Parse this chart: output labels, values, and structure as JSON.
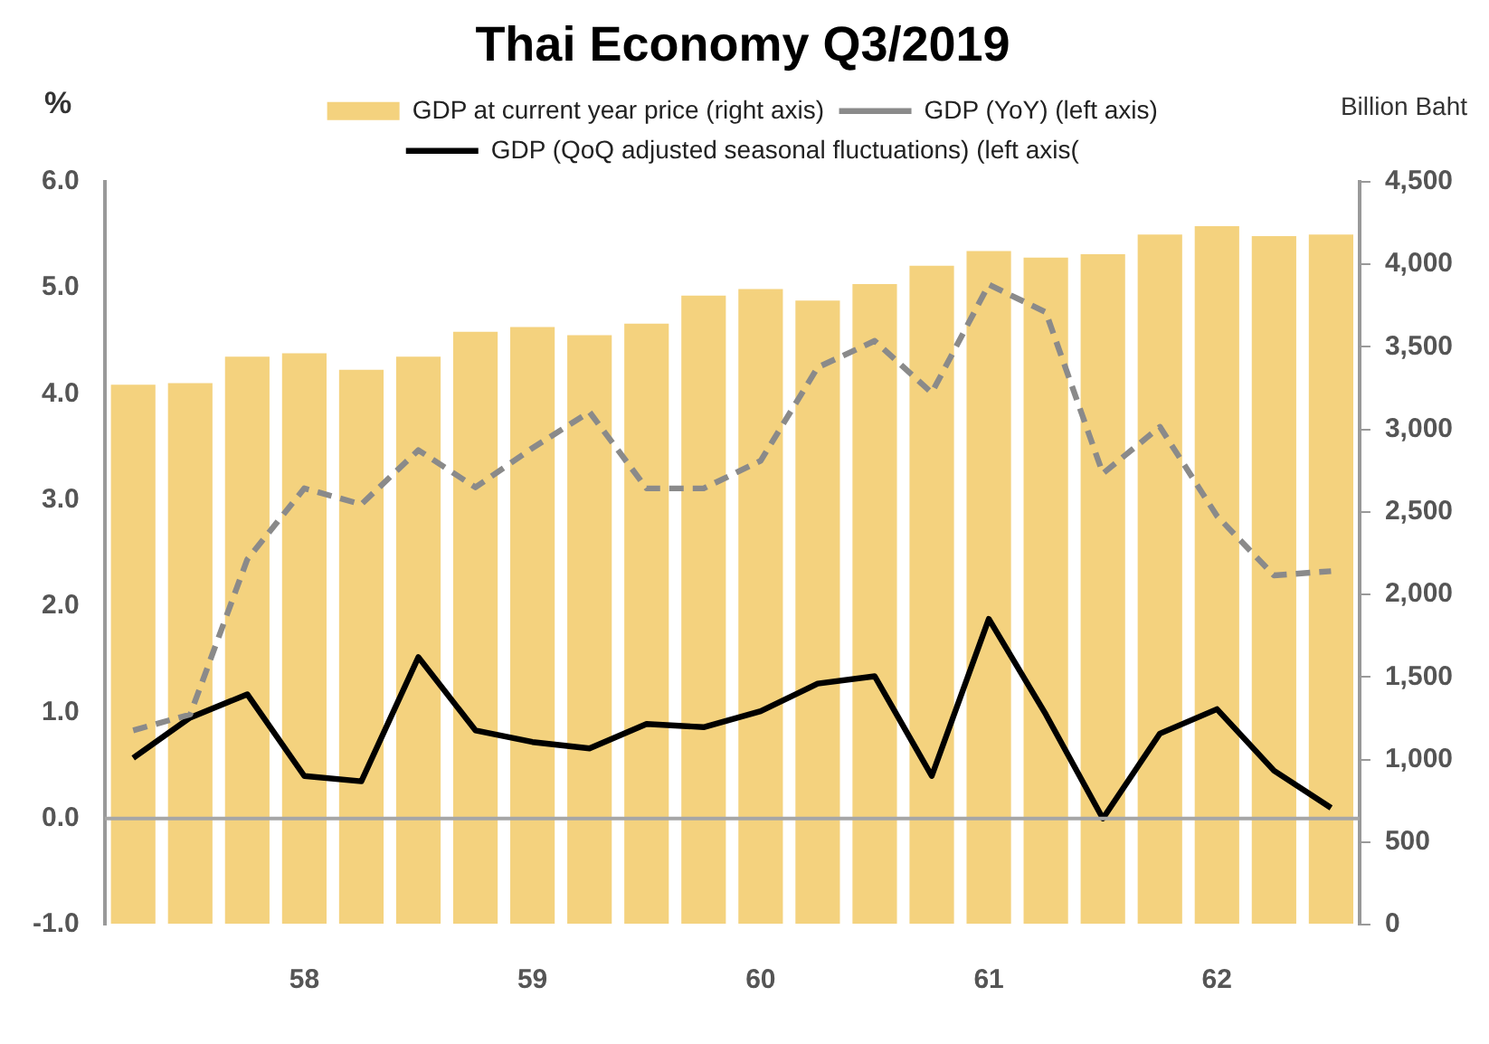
{
  "chart_data": {
    "type": "bar",
    "title": "Thai Economy Q3/2019",
    "ylabel": "%",
    "y2label": "Billion Baht",
    "categories": [
      null,
      null,
      null,
      "58",
      null,
      null,
      null,
      "59",
      null,
      null,
      null,
      "60",
      null,
      null,
      null,
      "61",
      null,
      null,
      null,
      "62",
      null,
      null
    ],
    "series": [
      {
        "name": "GDP at current year price (right axis)",
        "axis": "y2",
        "color": "#f4d27e",
        "values": [
          3270,
          3280,
          3440,
          3460,
          3360,
          3440,
          3590,
          3620,
          3570,
          3640,
          3810,
          3850,
          3780,
          3880,
          3990,
          4080,
          4040,
          4060,
          4180,
          4230,
          4170,
          4180
        ]
      },
      {
        "name": "GDP (YoY) (left axis)",
        "type": "line",
        "axis": "y",
        "color": "#8a8a8a",
        "line_style": "dashed",
        "values": [
          0.83,
          0.98,
          2.44,
          3.11,
          2.96,
          3.47,
          3.12,
          3.49,
          3.83,
          3.11,
          3.11,
          3.37,
          4.25,
          4.5,
          4.01,
          5.03,
          4.77,
          3.25,
          3.69,
          2.85,
          2.29,
          2.33
        ]
      },
      {
        "name": "GDP (QoQ adjusted seasonal fluctuations) (left axis(",
        "type": "line",
        "axis": "y",
        "color": "#000000",
        "line_style": "solid",
        "values": [
          0.57,
          0.95,
          1.17,
          0.4,
          0.35,
          1.52,
          0.83,
          0.72,
          0.66,
          0.89,
          0.86,
          1.01,
          1.27,
          1.34,
          0.4,
          1.88,
          0.98,
          0.0,
          0.8,
          1.03,
          0.45,
          0.1
        ]
      }
    ],
    "ylim": [
      -1,
      6
    ],
    "yticks": [
      {
        "value": -1,
        "label": "-1.0"
      },
      {
        "value": 0,
        "label": "0.0"
      },
      {
        "value": 1,
        "label": "1.0"
      },
      {
        "value": 2,
        "label": "2.0"
      },
      {
        "value": 3,
        "label": "3.0"
      },
      {
        "value": 4,
        "label": "4.0"
      },
      {
        "value": 5,
        "label": "5.0"
      },
      {
        "value": 6,
        "label": "6.0"
      }
    ],
    "y2lim": [
      0,
      4500
    ],
    "y2ticks": [
      0,
      500,
      {
        "value": 1000,
        "label": "1,000"
      },
      {
        "value": 1500,
        "label": "1,500"
      },
      {
        "value": 2000,
        "label": "2,000"
      },
      {
        "value": 2500,
        "label": "2,500"
      },
      {
        "value": 3000,
        "label": "3,000"
      },
      {
        "value": 3500,
        "label": "3,500"
      },
      {
        "value": 4000,
        "label": "4,000"
      },
      {
        "value": 4500,
        "label": "4,500"
      }
    ],
    "ref_lines": [
      {
        "axis": "y",
        "value": 0,
        "color": "#a6a6a6"
      }
    ],
    "grid": false,
    "legend": "top",
    "marker": "none"
  }
}
